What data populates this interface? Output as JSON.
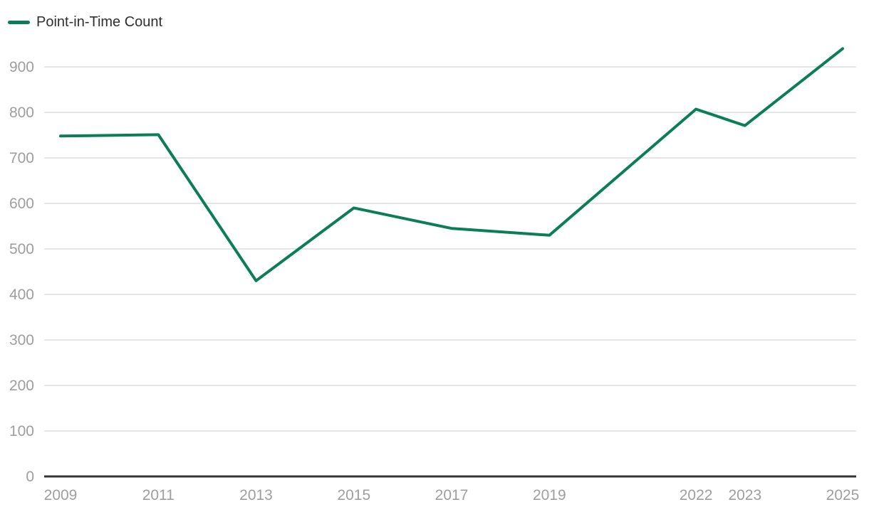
{
  "legend": {
    "label": "Point-in-Time Count"
  },
  "colors": {
    "line": "#0b7d57",
    "grid": "#e5e5e5",
    "axis": "#333333",
    "tick_label": "#9e9e9e",
    "legend_text": "#2f2f2f"
  },
  "chart_data": {
    "type": "line",
    "title": "",
    "legend_position": "top-left",
    "legend_entries": [
      {
        "label": "Point-in-Time Count",
        "color": "#0b7d57"
      }
    ],
    "x": [
      2009,
      2011,
      2013,
      2015,
      2017,
      2019,
      2022,
      2023,
      2025
    ],
    "series": [
      {
        "name": "Point-in-Time Count",
        "color": "#0b7d57",
        "values": [
          748,
          751,
          430,
          590,
          545,
          530,
          807,
          771,
          940
        ]
      }
    ],
    "xticks": [
      "2009",
      "2011",
      "2013",
      "2015",
      "2017",
      "2019",
      "2022",
      "2023",
      "2025"
    ],
    "yticks": [
      0,
      100,
      200,
      300,
      400,
      500,
      600,
      700,
      800,
      900
    ],
    "xlabel": "",
    "ylabel": "",
    "xlim": [
      2009,
      2025
    ],
    "ylim": [
      0,
      940
    ],
    "grid": "horizontal-only"
  }
}
